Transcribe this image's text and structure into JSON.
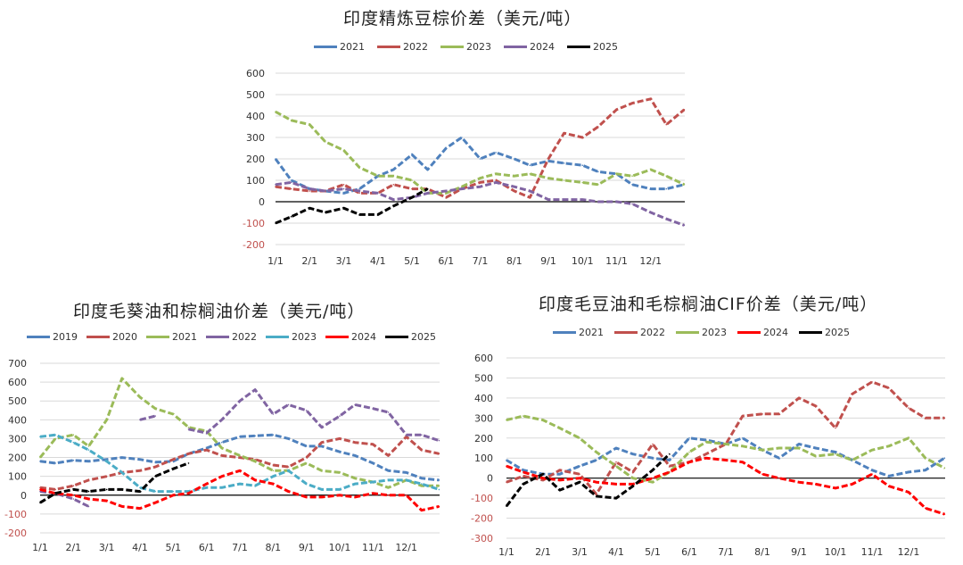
{
  "chart_data": [
    {
      "type": "line",
      "title": "印度精炼豆棕价差（美元/吨）",
      "ylim": [
        -200,
        600
      ],
      "yticks": [
        -200,
        -100,
        0,
        100,
        200,
        300,
        400,
        500,
        600
      ],
      "xticks": [
        "1/1",
        "2/1",
        "3/1",
        "4/1",
        "5/1",
        "6/1",
        "7/1",
        "8/1",
        "9/1",
        "10/1",
        "11/1",
        "12/1"
      ],
      "grid": true,
      "legend": "top",
      "x": [
        "1/1",
        "1/15",
        "2/1",
        "2/15",
        "3/1",
        "3/15",
        "4/1",
        "4/15",
        "5/1",
        "5/15",
        "6/1",
        "6/15",
        "7/1",
        "7/15",
        "8/1",
        "8/15",
        "9/1",
        "9/15",
        "10/1",
        "10/15",
        "11/1",
        "11/15",
        "12/1",
        "12/15",
        "12/31"
      ],
      "series": [
        {
          "name": "2021",
          "color": "#4f81bd",
          "values": [
            200,
            100,
            60,
            50,
            40,
            60,
            120,
            150,
            220,
            150,
            250,
            300,
            200,
            230,
            200,
            170,
            190,
            180,
            170,
            140,
            130,
            80,
            60,
            60,
            80
          ]
        },
        {
          "name": "2022",
          "color": "#c0504d",
          "values": [
            70,
            60,
            50,
            50,
            80,
            40,
            40,
            80,
            60,
            60,
            20,
            60,
            90,
            100,
            50,
            20,
            200,
            320,
            300,
            350,
            430,
            460,
            480,
            360,
            430
          ]
        },
        {
          "name": "2023",
          "color": "#9bbb59",
          "values": [
            420,
            380,
            360,
            280,
            240,
            160,
            120,
            120,
            100,
            40,
            40,
            70,
            110,
            130,
            120,
            130,
            110,
            100,
            90,
            80,
            130,
            120,
            150,
            120,
            80
          ]
        },
        {
          "name": "2024",
          "color": "#8064a2",
          "values": [
            80,
            90,
            60,
            50,
            60,
            50,
            40,
            10,
            20,
            40,
            50,
            60,
            70,
            90,
            70,
            50,
            10,
            10,
            10,
            0,
            0,
            -10,
            -50,
            -80,
            -110
          ]
        },
        {
          "name": "2025",
          "color": "#000000",
          "values": [
            -100,
            -70,
            -30,
            -50,
            -30,
            -60,
            -60,
            -20,
            20,
            60,
            null,
            null,
            null,
            null,
            null,
            null,
            null,
            null,
            null,
            null,
            null,
            null,
            null,
            null,
            null
          ]
        }
      ]
    },
    {
      "type": "line",
      "title": "印度毛葵油和棕榈油价差（美元/吨）",
      "ylim": [
        -200,
        700
      ],
      "yticks": [
        -200,
        -100,
        0,
        100,
        200,
        300,
        400,
        500,
        600,
        700
      ],
      "xticks": [
        "1/1",
        "2/1",
        "3/1",
        "4/1",
        "5/1",
        "6/1",
        "7/1",
        "8/1",
        "9/1",
        "10/1",
        "11/1",
        "12/1"
      ],
      "grid": true,
      "legend": "top",
      "x": [
        "1/1",
        "1/15",
        "2/1",
        "2/15",
        "3/1",
        "3/15",
        "4/1",
        "4/15",
        "5/1",
        "5/15",
        "6/1",
        "6/15",
        "7/1",
        "7/15",
        "8/1",
        "8/15",
        "9/1",
        "9/15",
        "10/1",
        "10/15",
        "11/1",
        "11/15",
        "12/1",
        "12/15",
        "12/31"
      ],
      "series": [
        {
          "name": "2019",
          "color": "#4f81bd",
          "values": [
            180,
            170,
            185,
            180,
            190,
            200,
            190,
            175,
            180,
            220,
            250,
            280,
            310,
            315,
            320,
            300,
            260,
            260,
            230,
            210,
            170,
            130,
            120,
            90,
            80
          ]
        },
        {
          "name": "2020",
          "color": "#c0504d",
          "values": [
            40,
            30,
            50,
            80,
            100,
            120,
            130,
            150,
            190,
            220,
            240,
            210,
            200,
            190,
            160,
            150,
            200,
            280,
            300,
            280,
            270,
            210,
            310,
            240,
            220
          ]
        },
        {
          "name": "2021",
          "color": "#9bbb59",
          "values": [
            200,
            300,
            320,
            260,
            400,
            620,
            520,
            460,
            430,
            360,
            340,
            250,
            210,
            180,
            130,
            130,
            170,
            130,
            120,
            90,
            70,
            40,
            80,
            50,
            50
          ]
        },
        {
          "name": "2022",
          "color": "#8064a2",
          "values": [
            20,
            10,
            -20,
            -60,
            null,
            null,
            400,
            420,
            null,
            350,
            330,
            400,
            500,
            560,
            430,
            480,
            450,
            360,
            420,
            480,
            460,
            440,
            320,
            320,
            290
          ]
        },
        {
          "name": "2023",
          "color": "#4bacc6",
          "values": [
            310,
            320,
            280,
            240,
            180,
            120,
            40,
            20,
            20,
            20,
            40,
            40,
            60,
            50,
            100,
            130,
            60,
            30,
            30,
            60,
            70,
            80,
            80,
            60,
            30
          ]
        },
        {
          "name": "2024",
          "color": "#ff0000",
          "values": [
            30,
            10,
            0,
            -20,
            -30,
            -60,
            -70,
            -40,
            0,
            10,
            60,
            100,
            130,
            80,
            60,
            20,
            -10,
            -10,
            0,
            -10,
            10,
            0,
            0,
            -80,
            -60
          ]
        },
        {
          "name": "2025",
          "color": "#000000",
          "values": [
            -40,
            10,
            30,
            20,
            30,
            30,
            20,
            100,
            140,
            170,
            null,
            null,
            null,
            null,
            null,
            null,
            null,
            null,
            null,
            null,
            null,
            null,
            null,
            null,
            null
          ]
        }
      ]
    },
    {
      "type": "line",
      "title": "印度毛豆油和毛棕榈油CIF价差（美元/吨）",
      "ylim": [
        -300,
        600
      ],
      "yticks": [
        -300,
        -200,
        -100,
        0,
        100,
        200,
        300,
        400,
        500,
        600
      ],
      "xticks": [
        "1/1",
        "2/1",
        "3/1",
        "4/1",
        "5/1",
        "6/1",
        "7/1",
        "8/1",
        "9/1",
        "10/1",
        "11/1",
        "12/1"
      ],
      "grid": true,
      "legend": "top",
      "x": [
        "1/1",
        "1/15",
        "2/1",
        "2/15",
        "3/1",
        "3/15",
        "4/1",
        "4/15",
        "5/1",
        "5/15",
        "6/1",
        "6/15",
        "7/1",
        "7/15",
        "8/1",
        "8/15",
        "9/1",
        "9/15",
        "10/1",
        "10/15",
        "11/1",
        "11/15",
        "12/1",
        "12/15",
        "12/31"
      ],
      "series": [
        {
          "name": "2021",
          "color": "#4f81bd",
          "values": [
            90,
            40,
            20,
            20,
            60,
            90,
            150,
            120,
            100,
            90,
            200,
            190,
            170,
            200,
            140,
            100,
            170,
            150,
            130,
            90,
            40,
            10,
            30,
            40,
            100
          ]
        },
        {
          "name": "2022",
          "color": "#c0504d",
          "values": [
            -20,
            10,
            -10,
            40,
            20,
            -80,
            80,
            30,
            170,
            60,
            80,
            120,
            170,
            310,
            320,
            320,
            400,
            360,
            250,
            420,
            480,
            450,
            350,
            300,
            300
          ]
        },
        {
          "name": "2023",
          "color": "#9bbb59",
          "values": [
            290,
            310,
            290,
            250,
            200,
            130,
            60,
            0,
            -20,
            30,
            130,
            180,
            170,
            160,
            140,
            150,
            150,
            110,
            120,
            90,
            140,
            160,
            200,
            100,
            50
          ]
        },
        {
          "name": "2024",
          "color": "#ff0000",
          "values": [
            60,
            30,
            0,
            -10,
            0,
            -20,
            -30,
            -30,
            0,
            30,
            80,
            100,
            90,
            80,
            20,
            0,
            -20,
            -30,
            -50,
            -30,
            20,
            -40,
            -70,
            -150,
            -180
          ]
        },
        {
          "name": "2025",
          "color": "#000000",
          "values": [
            -140,
            -30,
            20,
            -60,
            -20,
            -90,
            -100,
            -40,
            40,
            120,
            null,
            null,
            null,
            null,
            null,
            null,
            null,
            null,
            null,
            null,
            null,
            null,
            null,
            null,
            null
          ]
        }
      ]
    }
  ]
}
